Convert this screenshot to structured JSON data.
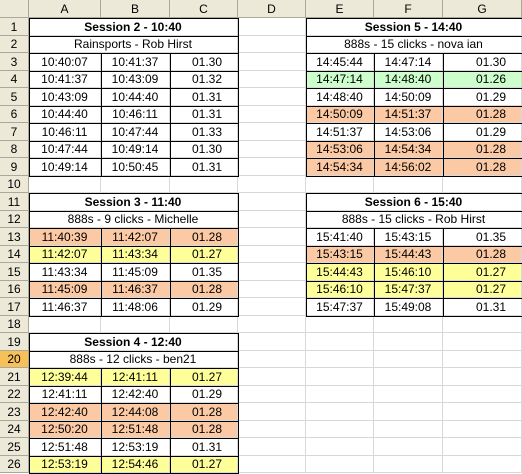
{
  "columns": [
    "A",
    "B",
    "C",
    "D",
    "E",
    "F",
    "G"
  ],
  "rows": [
    1,
    2,
    3,
    4,
    5,
    6,
    7,
    8,
    9,
    10,
    11,
    12,
    13,
    14,
    15,
    16,
    17,
    18,
    19,
    20,
    21,
    22,
    23,
    24,
    25,
    26
  ],
  "selected_row": 20,
  "colors": {
    "orange": "#fbc9a3",
    "yellow": "#ffff99",
    "green": "#ccffcc",
    "white": "#ffffff"
  },
  "blocks": [
    {
      "id": "s2",
      "col": 1,
      "row": 1,
      "title": "Session 2 - 10:40",
      "subtitle": "Rainsports - Rob Hirst",
      "data": [
        {
          "start": "10:40:07",
          "end": "10:41:37",
          "dur": "01.30",
          "color": "white"
        },
        {
          "start": "10:41:37",
          "end": "10:43:09",
          "dur": "01.32",
          "color": "white"
        },
        {
          "start": "10:43:09",
          "end": "10:44:40",
          "dur": "01.31",
          "color": "white"
        },
        {
          "start": "10:44:40",
          "end": "10:46:11",
          "dur": "01.31",
          "color": "white"
        },
        {
          "start": "10:46:11",
          "end": "10:47:44",
          "dur": "01.33",
          "color": "white"
        },
        {
          "start": "10:47:44",
          "end": "10:49:14",
          "dur": "01.30",
          "color": "white"
        },
        {
          "start": "10:49:14",
          "end": "10:50:45",
          "dur": "01.31",
          "color": "white"
        }
      ]
    },
    {
      "id": "s5",
      "col": 5,
      "row": 1,
      "title": "Session 5 - 14:40",
      "subtitle": "888s - 15 clicks - nova ian",
      "data": [
        {
          "start": "14:45:44",
          "end": "14:47:14",
          "dur": "01.30",
          "color": "white"
        },
        {
          "start": "14:47:14",
          "end": "14:48:40",
          "dur": "01.26",
          "color": "green"
        },
        {
          "start": "14:48:40",
          "end": "14:50:09",
          "dur": "01.29",
          "color": "white"
        },
        {
          "start": "14:50:09",
          "end": "14:51:37",
          "dur": "01.28",
          "color": "orange"
        },
        {
          "start": "14:51:37",
          "end": "14:53:06",
          "dur": "01.29",
          "color": "white"
        },
        {
          "start": "14:53:06",
          "end": "14:54:34",
          "dur": "01.28",
          "color": "orange"
        },
        {
          "start": "14:54:34",
          "end": "14:56:02",
          "dur": "01.28",
          "color": "orange"
        }
      ]
    },
    {
      "id": "s3",
      "col": 1,
      "row": 11,
      "title": "Session 3 - 11:40",
      "subtitle": "888s - 9 clicks - Michelle",
      "data": [
        {
          "start": "11:40:39",
          "end": "11:42:07",
          "dur": "01.28",
          "color": "orange"
        },
        {
          "start": "11:42:07",
          "end": "11:43:34",
          "dur": "01.27",
          "color": "yellow"
        },
        {
          "start": "11:43:34",
          "end": "11:45:09",
          "dur": "01.35",
          "color": "white"
        },
        {
          "start": "11:45:09",
          "end": "11:46:37",
          "dur": "01.28",
          "color": "orange"
        },
        {
          "start": "11:46:37",
          "end": "11:48:06",
          "dur": "01.29",
          "color": "white"
        }
      ]
    },
    {
      "id": "s6",
      "col": 5,
      "row": 11,
      "title": "Session 6 - 15:40",
      "subtitle": "888s - 15 clicks - Rob Hirst",
      "data": [
        {
          "start": "15:41:40",
          "end": "15:43:15",
          "dur": "01.35",
          "color": "white"
        },
        {
          "start": "15:43:15",
          "end": "15:44:43",
          "dur": "01.28",
          "color": "orange"
        },
        {
          "start": "15:44:43",
          "end": "15:46:10",
          "dur": "01.27",
          "color": "yellow"
        },
        {
          "start": "15:46:10",
          "end": "15:47:37",
          "dur": "01.27",
          "color": "yellow"
        },
        {
          "start": "15:47:37",
          "end": "15:49:08",
          "dur": "01.31",
          "color": "white"
        }
      ]
    },
    {
      "id": "s4",
      "col": 1,
      "row": 19,
      "title": "Session 4 - 12:40",
      "subtitle": "888s - 12 clicks - ben21",
      "data": [
        {
          "start": "12:39:44",
          "end": "12:41:11",
          "dur": "01.27",
          "color": "yellow"
        },
        {
          "start": "12:41:11",
          "end": "12:42:40",
          "dur": "01.29",
          "color": "white"
        },
        {
          "start": "12:42:40",
          "end": "12:44:08",
          "dur": "01.28",
          "color": "orange"
        },
        {
          "start": "12:50:20",
          "end": "12:51:48",
          "dur": "01.28",
          "color": "orange"
        },
        {
          "start": "12:51:48",
          "end": "12:53:19",
          "dur": "01.31",
          "color": "white"
        },
        {
          "start": "12:53:19",
          "end": "12:54:46",
          "dur": "01.27",
          "color": "yellow"
        }
      ]
    }
  ]
}
